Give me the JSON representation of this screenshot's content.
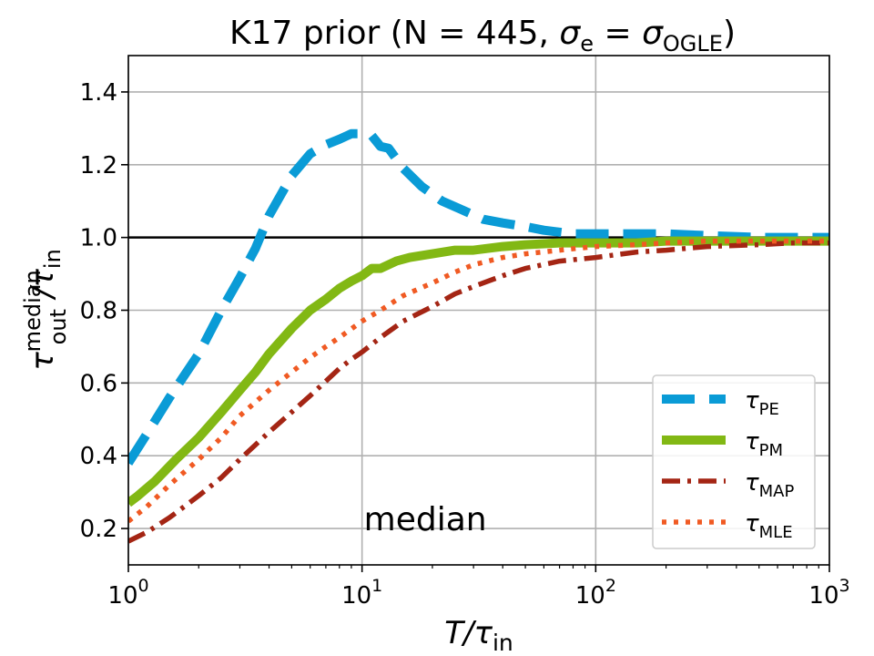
{
  "chart_data": {
    "type": "line",
    "title": {
      "main": "K17 prior (N = 445, ",
      "sigma": "σ",
      "sigma_sub1": "e",
      "eq": " = ",
      "sigma_sub2": "OGLE",
      "close": ")"
    },
    "xlabel": {
      "main": "T/τ",
      "sub": "in"
    },
    "ylabel": {
      "tau": "τ",
      "sup": "median",
      "sub": "out",
      "slash": "/τ",
      "sub2": "in"
    },
    "x_scale": "log",
    "xlim": [
      1,
      1000
    ],
    "ylim": [
      0.1,
      1.5
    ],
    "grid": true,
    "x_ticks": [
      {
        "value": 1,
        "base": "10",
        "exp": "0"
      },
      {
        "value": 10,
        "base": "10",
        "exp": "1"
      },
      {
        "value": 100,
        "base": "10",
        "exp": "2"
      },
      {
        "value": 1000,
        "base": "10",
        "exp": "3"
      }
    ],
    "y_ticks": [
      {
        "value": 0.2,
        "label": "0.2"
      },
      {
        "value": 0.4,
        "label": "0.4"
      },
      {
        "value": 0.6,
        "label": "0.6"
      },
      {
        "value": 0.8,
        "label": "0.8"
      },
      {
        "value": 1.0,
        "label": "1.0"
      },
      {
        "value": 1.2,
        "label": "1.2"
      },
      {
        "value": 1.4,
        "label": "1.4"
      }
    ],
    "reference_line": {
      "y": 1.0,
      "color": "#000000"
    },
    "annotation": {
      "text": "median",
      "x": 10,
      "y": 0.2
    },
    "legend_position": "lower-right",
    "series": [
      {
        "id": "pe",
        "name": "τ",
        "name_sub": "PE",
        "color": "#0a9bd6",
        "style": "dashed",
        "x": [
          1,
          1.2,
          1.5,
          2,
          2.5,
          3,
          3.5,
          4,
          5,
          6,
          7,
          8,
          9,
          10,
          11,
          12,
          13,
          15,
          18,
          22,
          27,
          33,
          40,
          50,
          60,
          80,
          100,
          150,
          200,
          300,
          500,
          700,
          1000
        ],
        "y": [
          0.38,
          0.46,
          0.56,
          0.68,
          0.8,
          0.89,
          0.97,
          1.06,
          1.17,
          1.23,
          1.255,
          1.27,
          1.285,
          1.285,
          1.28,
          1.25,
          1.245,
          1.19,
          1.14,
          1.1,
          1.075,
          1.05,
          1.04,
          1.03,
          1.02,
          1.01,
          1.01,
          1.01,
          1.01,
          1.005,
          1.0,
          1.0,
          1.0
        ]
      },
      {
        "id": "pm",
        "name": "τ",
        "name_sub": "PM",
        "color": "#82b814",
        "style": "solid",
        "x": [
          1,
          1.1,
          1.3,
          1.6,
          2,
          2.5,
          3,
          3.5,
          4,
          5,
          6,
          7,
          8,
          9,
          10,
          11,
          12,
          14,
          16,
          20,
          25,
          30,
          40,
          50,
          70,
          100,
          150,
          200,
          300,
          500,
          700,
          1000
        ],
        "y": [
          0.27,
          0.29,
          0.33,
          0.39,
          0.45,
          0.52,
          0.58,
          0.63,
          0.68,
          0.75,
          0.8,
          0.83,
          0.86,
          0.88,
          0.895,
          0.915,
          0.915,
          0.935,
          0.945,
          0.955,
          0.965,
          0.965,
          0.975,
          0.98,
          0.985,
          0.985,
          0.985,
          0.99,
          0.99,
          0.99,
          0.99,
          0.99
        ]
      },
      {
        "id": "map",
        "name": "τ",
        "name_sub": "MAP",
        "color": "#a42514",
        "style": "dashdot",
        "x": [
          1,
          1.2,
          1.5,
          2,
          2.5,
          3,
          3.5,
          4,
          5,
          6,
          7,
          8,
          9,
          10,
          12,
          15,
          20,
          25,
          30,
          40,
          50,
          70,
          100,
          150,
          200,
          300,
          500,
          700,
          1000
        ],
        "y": [
          0.165,
          0.19,
          0.23,
          0.29,
          0.34,
          0.39,
          0.43,
          0.465,
          0.52,
          0.565,
          0.605,
          0.64,
          0.665,
          0.685,
          0.725,
          0.77,
          0.81,
          0.845,
          0.865,
          0.895,
          0.915,
          0.935,
          0.945,
          0.96,
          0.965,
          0.975,
          0.98,
          0.985,
          0.985
        ]
      },
      {
        "id": "mle",
        "name": "τ",
        "name_sub": "MLE",
        "color": "#f05a23",
        "style": "dotted",
        "x": [
          1,
          1.2,
          1.5,
          2,
          2.5,
          3,
          4,
          5,
          6,
          7,
          8,
          10,
          12,
          15,
          20,
          25,
          30,
          40,
          50,
          70,
          100,
          150,
          200,
          300,
          500,
          700,
          1000
        ],
        "y": [
          0.22,
          0.26,
          0.32,
          0.39,
          0.45,
          0.51,
          0.58,
          0.63,
          0.67,
          0.7,
          0.725,
          0.77,
          0.8,
          0.84,
          0.875,
          0.905,
          0.925,
          0.945,
          0.955,
          0.965,
          0.975,
          0.98,
          0.985,
          0.99,
          0.99,
          0.99,
          0.99
        ]
      }
    ]
  }
}
